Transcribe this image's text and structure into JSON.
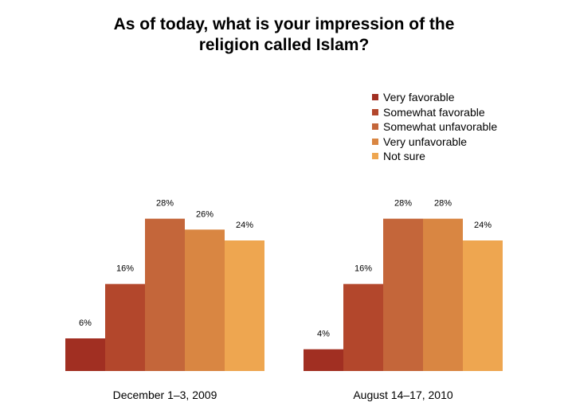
{
  "chart_data": {
    "type": "bar",
    "title_lines": [
      "As of today, what is your impression of the",
      "religion called Islam?"
    ],
    "categories": [
      "December 1–3, 2009",
      "August 14–17, 2010"
    ],
    "series": [
      {
        "name": "Very favorable",
        "color": "#a12f22",
        "values": [
          6,
          4
        ],
        "labels": [
          "6%",
          "4%"
        ]
      },
      {
        "name": "Somewhat favorable",
        "color": "#b3472c",
        "values": [
          16,
          16
        ],
        "labels": [
          "16%",
          "16%"
        ]
      },
      {
        "name": "Somewhat unfavorable",
        "color": "#c4663a",
        "values": [
          28,
          28
        ],
        "labels": [
          "28%",
          "28%"
        ]
      },
      {
        "name": "Very unfavorable",
        "color": "#d98642",
        "values": [
          26,
          28
        ],
        "labels": [
          "26%",
          "28%"
        ]
      },
      {
        "name": "Not sure",
        "color": "#eea650",
        "values": [
          24,
          24
        ],
        "labels": [
          "24%",
          "24%"
        ]
      }
    ],
    "ylim": [
      0,
      30
    ],
    "grid": false,
    "legend_position": "top-right"
  }
}
